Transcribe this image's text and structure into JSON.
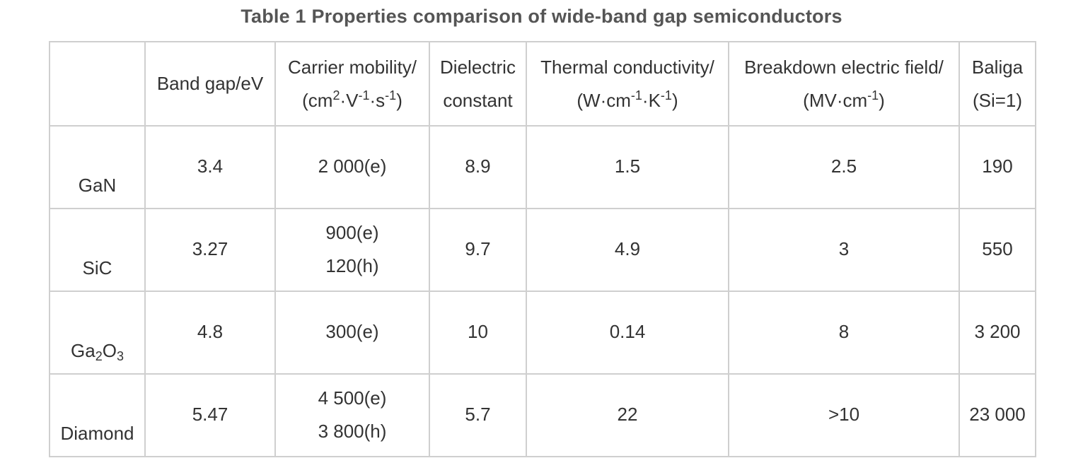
{
  "caption": "Table 1 Properties comparison of wide-band gap semiconductors",
  "header": {
    "col0": "",
    "band_gap": "Band gap/eV",
    "mobility_line1": "Carrier mobility/",
    "mobility_unit_a": "(cm",
    "mobility_sup_a": "2",
    "mobility_unit_b": "·V",
    "mobility_sup_b": "-1",
    "mobility_unit_c": "·s",
    "mobility_sup_c": "-1",
    "mobility_unit_d": ")",
    "dielectric_line1": "Dielectric",
    "dielectric_line2": "constant",
    "thermal_line1": "Thermal conductivity/",
    "thermal_unit_a": "(W·cm",
    "thermal_sup_a": "-1",
    "thermal_unit_b": "·K",
    "thermal_sup_b": "-1",
    "thermal_unit_c": ")",
    "breakdown_line1": "Breakdown electric field/",
    "breakdown_unit_a": "(MV·cm",
    "breakdown_sup_a": "-1",
    "breakdown_unit_b": ")",
    "baliga_line1": "Baliga",
    "baliga_line2": "(Si=1)"
  },
  "rows": [
    {
      "material": "GaN",
      "band_gap": "3.4",
      "mobility": [
        "2 000(e)"
      ],
      "dielectric": "8.9",
      "thermal": "1.5",
      "breakdown": "2.5",
      "baliga": "190"
    },
    {
      "material": "SiC",
      "band_gap": "3.27",
      "mobility": [
        "900(e)",
        "120(h)"
      ],
      "dielectric": "9.7",
      "thermal": "4.9",
      "breakdown": "3",
      "baliga": "550"
    },
    {
      "material_a": "Ga",
      "material_sub_a": "2",
      "material_b": "O",
      "material_sub_b": "3",
      "band_gap": "4.8",
      "mobility": [
        "300(e)"
      ],
      "dielectric": "10",
      "thermal": "0.14",
      "breakdown": "8",
      "baliga": "3 200"
    },
    {
      "material": "Diamond",
      "band_gap": "5.47",
      "mobility": [
        "4 500(e)",
        "3 800(h)"
      ],
      "dielectric": "5.7",
      "thermal": "22",
      "breakdown": ">10",
      "baliga": "23 000"
    }
  ]
}
